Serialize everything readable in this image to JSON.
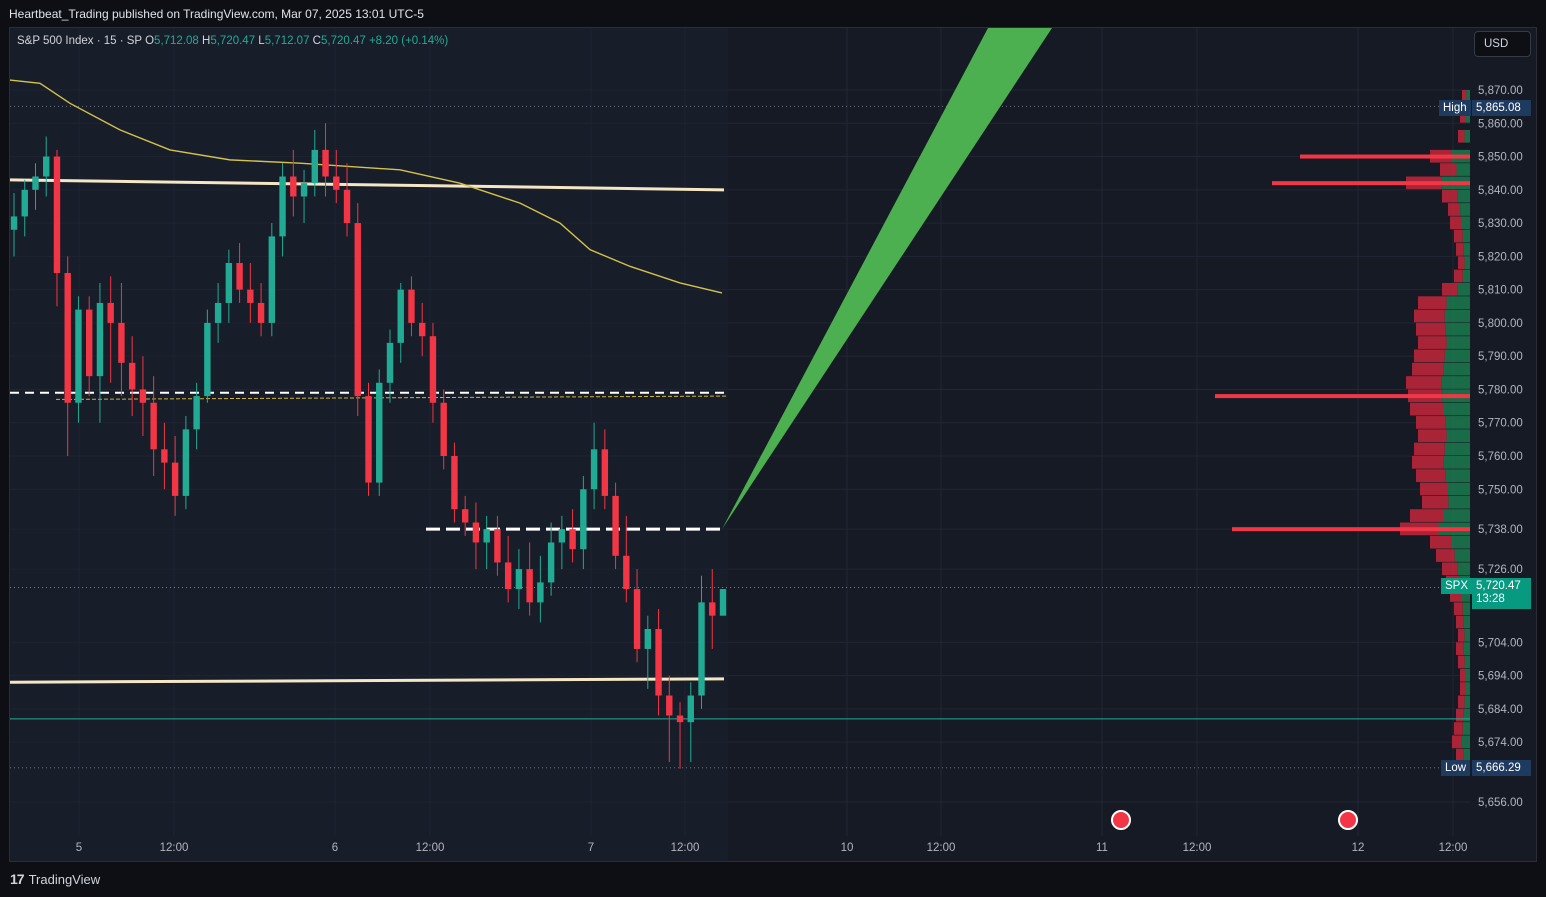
{
  "header": {
    "published_by": "Heartbeat_Trading published on TradingView.com, Mar 07, 2025 13:01 UTC-5"
  },
  "legend": {
    "symbol": "S&P 500 Index · 15 · SP",
    "o_label": "O",
    "o_value": "5,712.08",
    "h_label": "H",
    "h_value": "5,720.47",
    "l_label": "L",
    "l_value": "5,712.07",
    "c_label": "C",
    "c_value": "5,720.47",
    "change": "+8.20 (+0.14%)"
  },
  "currency_button": "USD",
  "footer": {
    "brand": "TradingView",
    "logo": "17"
  },
  "tags": {
    "high_label": "High",
    "high_value": "5,865.08",
    "low_label": "Low",
    "low_value": "5,666.29",
    "symbol_label": "SPX",
    "last_price": "5,720.47",
    "countdown": "13:28"
  },
  "colors": {
    "up": "#22ab94",
    "down": "#f23645",
    "projection": "#4caf50",
    "ma": "#d4c24a",
    "level": "#f5e6c4",
    "background": "#161a25"
  },
  "chart_data": {
    "type": "candlestick",
    "interval": "15",
    "y_ticks": [
      "5,656.00",
      "5,674.00",
      "5,684.00",
      "5,694.00",
      "5,704.00",
      "5,726.00",
      "5,738.00",
      "5,750.00",
      "5,760.00",
      "5,770.00",
      "5,780.00",
      "5,790.00",
      "5,800.00",
      "5,810.00",
      "5,820.00",
      "5,830.00",
      "5,840.00",
      "5,850.00",
      "5,860.00",
      "5,870.00"
    ],
    "x_ticks": [
      "5",
      "12:00",
      "6",
      "12:00",
      "7",
      "12:00",
      "10",
      "12:00",
      "11",
      "12:00",
      "12",
      "12:00"
    ],
    "ylim": [
      5650,
      5880
    ],
    "levels": [
      5841,
      5779,
      5738,
      5693,
      5681
    ],
    "projection": {
      "from": 5738,
      "to": 5880
    },
    "candles": [
      [
        5828,
        5839,
        5820,
        5832
      ],
      [
        5832,
        5843,
        5826,
        5840
      ],
      [
        5840,
        5848,
        5834,
        5844
      ],
      [
        5844,
        5856,
        5838,
        5850
      ],
      [
        5850,
        5852,
        5805,
        5815
      ],
      [
        5815,
        5820,
        5760,
        5776
      ],
      [
        5776,
        5808,
        5770,
        5804
      ],
      [
        5804,
        5808,
        5778,
        5784
      ],
      [
        5784,
        5812,
        5770,
        5806
      ],
      [
        5806,
        5814,
        5782,
        5800
      ],
      [
        5800,
        5812,
        5778,
        5788
      ],
      [
        5788,
        5796,
        5772,
        5780
      ],
      [
        5780,
        5790,
        5766,
        5776
      ],
      [
        5776,
        5784,
        5754,
        5762
      ],
      [
        5762,
        5770,
        5750,
        5758
      ],
      [
        5758,
        5766,
        5742,
        5748
      ],
      [
        5748,
        5772,
        5744,
        5768
      ],
      [
        5768,
        5782,
        5762,
        5778
      ],
      [
        5778,
        5804,
        5776,
        5800
      ],
      [
        5800,
        5812,
        5794,
        5806
      ],
      [
        5806,
        5822,
        5800,
        5818
      ],
      [
        5818,
        5824,
        5806,
        5810
      ],
      [
        5810,
        5818,
        5800,
        5806
      ],
      [
        5806,
        5812,
        5796,
        5800
      ],
      [
        5800,
        5830,
        5796,
        5826
      ],
      [
        5826,
        5848,
        5820,
        5844
      ],
      [
        5844,
        5852,
        5832,
        5838
      ],
      [
        5838,
        5846,
        5830,
        5842
      ],
      [
        5842,
        5858,
        5838,
        5852
      ],
      [
        5852,
        5860,
        5838,
        5844
      ],
      [
        5844,
        5852,
        5836,
        5840
      ],
      [
        5840,
        5848,
        5826,
        5830
      ],
      [
        5830,
        5836,
        5772,
        5778
      ],
      [
        5778,
        5782,
        5748,
        5752
      ],
      [
        5752,
        5786,
        5748,
        5782
      ],
      [
        5782,
        5798,
        5776,
        5794
      ],
      [
        5794,
        5812,
        5788,
        5810
      ],
      [
        5810,
        5814,
        5796,
        5800
      ],
      [
        5800,
        5806,
        5790,
        5796
      ],
      [
        5796,
        5800,
        5770,
        5776
      ],
      [
        5776,
        5780,
        5756,
        5760
      ],
      [
        5760,
        5764,
        5740,
        5744
      ],
      [
        5744,
        5748,
        5736,
        5740
      ],
      [
        5740,
        5746,
        5726,
        5734
      ],
      [
        5734,
        5742,
        5726,
        5738
      ],
      [
        5738,
        5742,
        5724,
        5728
      ],
      [
        5728,
        5736,
        5716,
        5720
      ],
      [
        5720,
        5732,
        5714,
        5726
      ],
      [
        5726,
        5734,
        5712,
        5716
      ],
      [
        5716,
        5730,
        5710,
        5722
      ],
      [
        5722,
        5740,
        5718,
        5734
      ],
      [
        5734,
        5742,
        5726,
        5738
      ],
      [
        5738,
        5744,
        5728,
        5732
      ],
      [
        5732,
        5754,
        5726,
        5750
      ],
      [
        5750,
        5770,
        5744,
        5762
      ],
      [
        5762,
        5768,
        5744,
        5748
      ],
      [
        5748,
        5752,
        5726,
        5730
      ],
      [
        5730,
        5742,
        5716,
        5720
      ],
      [
        5720,
        5726,
        5698,
        5702
      ],
      [
        5702,
        5712,
        5690,
        5708
      ],
      [
        5708,
        5714,
        5682,
        5688
      ],
      [
        5688,
        5694,
        5668,
        5682
      ],
      [
        5682,
        5686,
        5666,
        5680
      ],
      [
        5680,
        5692,
        5668,
        5688
      ],
      [
        5688,
        5724,
        5684,
        5716
      ],
      [
        5716,
        5726,
        5702,
        5712
      ],
      [
        5712,
        5720,
        5712,
        5720
      ]
    ]
  }
}
